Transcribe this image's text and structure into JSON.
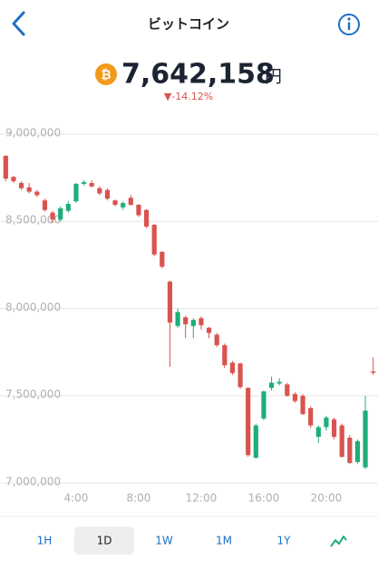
{
  "header": {
    "title": "ビットコイン"
  },
  "price": {
    "amount": "7,642,158",
    "unit": "円",
    "change": "▼-14.12%"
  },
  "chart_data": {
    "type": "candlestick",
    "categories": [
      null,
      null,
      null,
      null,
      null,
      null,
      null,
      null,
      null,
      "4:00",
      null,
      null,
      null,
      null,
      null,
      null,
      null,
      "8:00",
      null,
      null,
      null,
      null,
      null,
      null,
      null,
      "12:00",
      null,
      null,
      null,
      null,
      null,
      null,
      null,
      "16:00",
      null,
      null,
      null,
      null,
      null,
      null,
      null,
      "20:00",
      null,
      null,
      null,
      null,
      null,
      null
    ],
    "open": [
      8875000,
      8755000,
      8720000,
      8695000,
      8670000,
      8620000,
      8550000,
      8510000,
      8560000,
      8615000,
      8715000,
      8720000,
      8690000,
      8680000,
      8620000,
      8580000,
      8635000,
      8595000,
      8565000,
      8480000,
      8325000,
      8155000,
      7900000,
      7950000,
      7900000,
      7945000,
      7890000,
      7850000,
      7790000,
      7690000,
      7685000,
      7545000,
      7145000,
      7370000,
      7545000,
      7570000,
      7565000,
      7510000,
      7500000,
      7430000,
      7265000,
      7320000,
      7365000,
      7330000,
      7260000,
      7120000,
      7090000,
      7640000
    ],
    "high": [
      8880000,
      8760000,
      8730000,
      8720000,
      8680000,
      8630000,
      8560000,
      8585000,
      8615000,
      8720000,
      8735000,
      8735000,
      8700000,
      8690000,
      8625000,
      8615000,
      8650000,
      8600000,
      8570000,
      8485000,
      8330000,
      8160000,
      8000000,
      7960000,
      7945000,
      7955000,
      7895000,
      7860000,
      7800000,
      7700000,
      7690000,
      7550000,
      7340000,
      7530000,
      7610000,
      7600000,
      7575000,
      7520000,
      7510000,
      7440000,
      7330000,
      7385000,
      7375000,
      7340000,
      7275000,
      7250000,
      7500000,
      7720000
    ],
    "low": [
      8730000,
      8720000,
      8680000,
      8660000,
      8640000,
      8555000,
      8490000,
      8500000,
      8550000,
      8605000,
      8705000,
      8695000,
      8650000,
      8620000,
      8585000,
      8565000,
      8590000,
      8525000,
      8460000,
      8300000,
      8230000,
      7665000,
      7890000,
      7830000,
      7830000,
      7880000,
      7830000,
      7780000,
      7660000,
      7620000,
      7540000,
      7150000,
      7140000,
      7360000,
      7530000,
      7560000,
      7495000,
      7460000,
      7390000,
      7315000,
      7230000,
      7300000,
      7250000,
      7145000,
      7110000,
      7110000,
      7080000,
      7620000
    ],
    "close": [
      8745000,
      8730000,
      8690000,
      8670000,
      8650000,
      8565000,
      8510000,
      8575000,
      8600000,
      8715000,
      8725000,
      8700000,
      8660000,
      8630000,
      8595000,
      8605000,
      8595000,
      8535000,
      8470000,
      8310000,
      8240000,
      7920000,
      7980000,
      7910000,
      7935000,
      7905000,
      7860000,
      7790000,
      7675000,
      7630000,
      7550000,
      7160000,
      7330000,
      7525000,
      7575000,
      7580000,
      7500000,
      7470000,
      7395000,
      7330000,
      7320000,
      7375000,
      7265000,
      7150000,
      7115000,
      7240000,
      7415000,
      7632000
    ],
    "up_color": "#1fae78",
    "down_color": "#d9534f",
    "ylim": [
      6950000,
      9100000
    ],
    "yticks": [
      {
        "value": 7000000,
        "label": "7,000,000"
      },
      {
        "value": 7500000,
        "label": "7,500,000"
      },
      {
        "value": 8000000,
        "label": "8,000,000"
      },
      {
        "value": 8500000,
        "label": "8,500,000"
      },
      {
        "value": 9000000,
        "label": "9,000,000"
      }
    ],
    "grid": true
  },
  "tabs": [
    "1H",
    "1D",
    "1W",
    "1M",
    "1Y"
  ]
}
